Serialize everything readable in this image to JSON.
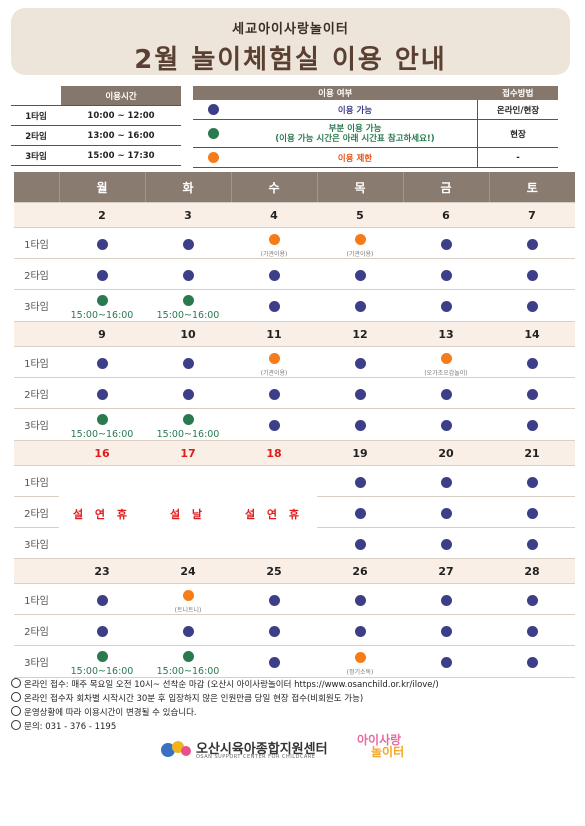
{
  "header": {
    "subtitle": "세교아이사랑놀이터",
    "title": "2월 놀이체험실 이용 안내"
  },
  "time_table": {
    "header": "이용시간",
    "rows": [
      {
        "label": "1타임",
        "time": "10:00 ~ 12:00"
      },
      {
        "label": "2타임",
        "time": "13:00 ~ 16:00"
      },
      {
        "label": "3타임",
        "time": "15:00 ~ 17:30"
      }
    ]
  },
  "legend": {
    "header_status": "이용 여부",
    "header_method": "접수방법",
    "rows": [
      {
        "color": "#3c3f88",
        "text": "이용 가능",
        "method": "온라인/현장"
      },
      {
        "color": "#2a7a50",
        "text": "부분 이용 가능",
        "text2": "(이용 가능 시간은 아래 시간표 참고하세요!)",
        "method": "현장"
      },
      {
        "color": "#f57c18",
        "text": "이용 제한",
        "method": "-"
      }
    ],
    "text_colors": {
      "blue": "#3c3f88",
      "green": "#2a7a50",
      "orange": "#e8500f"
    }
  },
  "calendar": {
    "days": [
      "월",
      "화",
      "수",
      "목",
      "금",
      "토"
    ],
    "slot_labels": [
      "1타임",
      "2타임",
      "3타임"
    ],
    "green_time": "15:00~16:00",
    "weeks": [
      {
        "dates": [
          "2",
          "3",
          "4",
          "5",
          "6",
          "7"
        ],
        "notes": {
          "1-2": "(기관이용)",
          "1-3": "(기관이용)"
        }
      },
      {
        "dates": [
          "9",
          "10",
          "11",
          "12",
          "13",
          "14"
        ],
        "notes": {
          "1-2": "(기관이용)",
          "1-4": "(오가조오감놀이)"
        }
      },
      {
        "dates": [
          "16",
          "17",
          "18",
          "19",
          "20",
          "21"
        ],
        "holidays": [
          "설 연 휴",
          "설 날",
          "설 연 휴"
        ]
      },
      {
        "dates": [
          "23",
          "24",
          "25",
          "26",
          "27",
          "28"
        ],
        "notes": {
          "1-1": "(트니트니)",
          "3-3": "(정기소독)"
        }
      }
    ]
  },
  "notes": [
    "온라인 접수: 매주 목요일 오전 10시~ 선착순 마감 (오산시 아이사랑놀이터 https://www.osanchild.or.kr/ilove/)",
    "온라인 접수자 회차별 시작시간 30분 후 입장하지 않은 인원만큼 당일 현장 접수(비회원도 가능)",
    "운영상황에 따라 이용시간이 변경될 수 있습니다.",
    "문의: 031 - 376 - 1195"
  ],
  "footer": {
    "logo1_name": "오산시육아종합지원센터",
    "logo1_sub": "OSAN SUPPORT CENTER FOR CHILDCARE",
    "logo2_line1": "아이사랑",
    "logo2_line2": "놀이터"
  }
}
